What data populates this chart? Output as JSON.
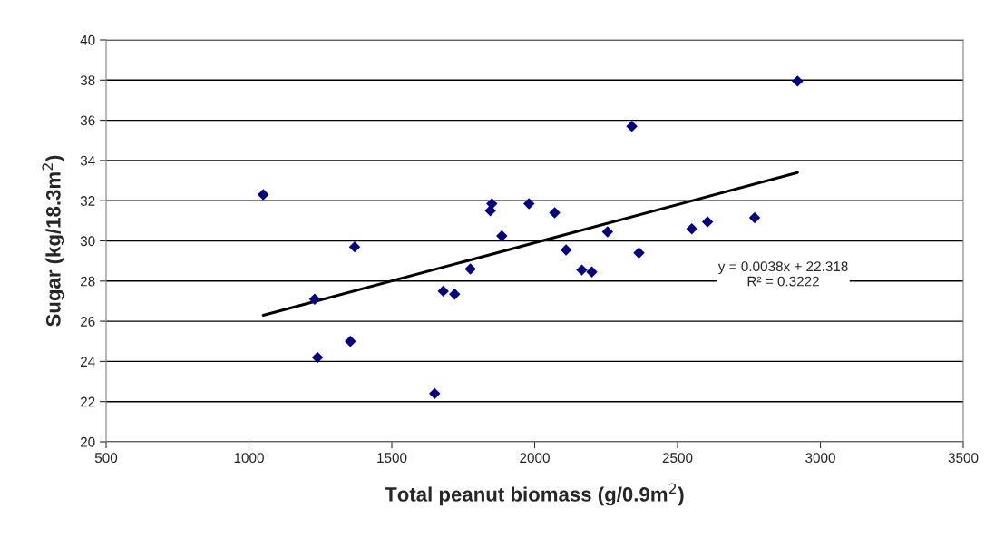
{
  "chart_data": {
    "type": "scatter",
    "xlabel": "Total peanut biomass (g/0.9m$^{2}$)",
    "ylabel": "Sugar (kg/18.3m$^{2}$)",
    "xlim": [
      500,
      3500
    ],
    "xticks": [
      500,
      1000,
      1500,
      2000,
      2500,
      3000,
      3500
    ],
    "ylim": [
      20,
      40
    ],
    "yticks": [
      20,
      22,
      24,
      26,
      28,
      30,
      32,
      34,
      36,
      38,
      40
    ],
    "grid": "y",
    "marker": "diamond",
    "series": [
      {
        "color": "#000080",
        "x": [
          1050,
          1230,
          1240,
          1355,
          1370,
          1650,
          1680,
          1720,
          1775,
          1845,
          1850,
          1885,
          1980,
          2070,
          2110,
          2165,
          2200,
          2255,
          2340,
          2365,
          2550,
          2605,
          2770,
          2920
        ],
        "values": [
          32.3,
          27.1,
          24.2,
          25.0,
          29.7,
          22.4,
          27.5,
          27.35,
          28.6,
          31.5,
          31.85,
          30.25,
          31.85,
          31.4,
          29.55,
          28.55,
          28.45,
          30.45,
          35.7,
          29.4,
          30.6,
          30.95,
          31.15,
          37.95
        ]
      },
      {
        "type": "line",
        "color": "#000000",
        "marker": "none",
        "x": [
          1050,
          2920
        ],
        "values": [
          26.3,
          33.4
        ]
      }
    ],
    "annotations": [
      "y = 0.0038x + 22.318\nR² = 0.3222"
    ]
  }
}
